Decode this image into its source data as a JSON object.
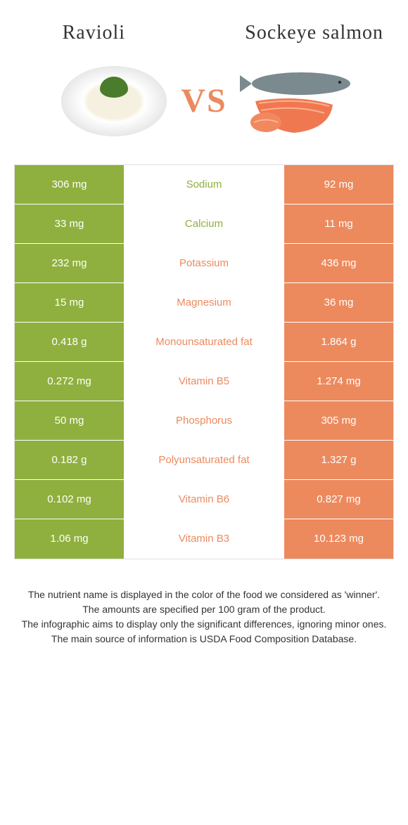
{
  "foods": {
    "left": {
      "name": "Ravioli",
      "color": "#8fb03e"
    },
    "right": {
      "name": "Sockeye salmon",
      "color": "#ec8a5e"
    }
  },
  "vs_label": "VS",
  "colors": {
    "left_bar": "#8fb03e",
    "right_bar": "#ec8a5e",
    "row_border": "#ffffff",
    "table_border": "#e0e0e0"
  },
  "nutrients": [
    {
      "name": "Sodium",
      "left": "306 mg",
      "right": "92 mg",
      "winner": "left"
    },
    {
      "name": "Calcium",
      "left": "33 mg",
      "right": "11 mg",
      "winner": "left"
    },
    {
      "name": "Potassium",
      "left": "232 mg",
      "right": "436 mg",
      "winner": "right"
    },
    {
      "name": "Magnesium",
      "left": "15 mg",
      "right": "36 mg",
      "winner": "right"
    },
    {
      "name": "Monounsaturated fat",
      "left": "0.418 g",
      "right": "1.864 g",
      "winner": "right"
    },
    {
      "name": "Vitamin B5",
      "left": "0.272 mg",
      "right": "1.274 mg",
      "winner": "right"
    },
    {
      "name": "Phosphorus",
      "left": "50 mg",
      "right": "305 mg",
      "winner": "right"
    },
    {
      "name": "Polyunsaturated fat",
      "left": "0.182 g",
      "right": "1.327 g",
      "winner": "right"
    },
    {
      "name": "Vitamin B6",
      "left": "0.102 mg",
      "right": "0.827 mg",
      "winner": "right"
    },
    {
      "name": "Vitamin B3",
      "left": "1.06 mg",
      "right": "10.123 mg",
      "winner": "right"
    }
  ],
  "footer": {
    "line1": "The nutrient name is displayed in the color of the food we considered as 'winner'.",
    "line2": "The amounts are specified per 100 gram of the product.",
    "line3": "The infographic aims to display only the significant differences, ignoring minor ones.",
    "line4": "The main source of information is USDA Food Composition Database."
  }
}
